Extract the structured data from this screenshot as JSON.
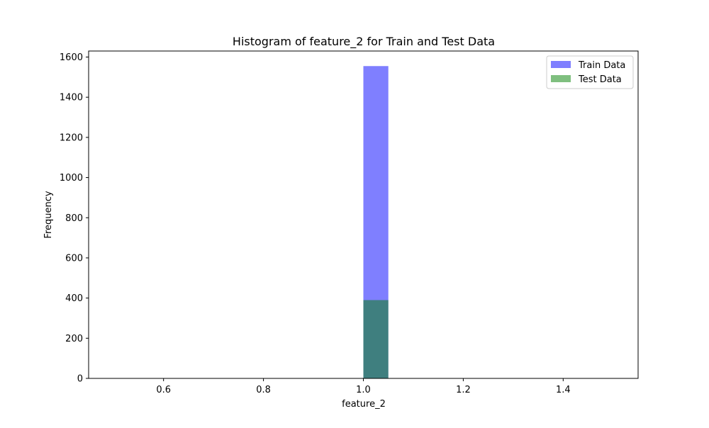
{
  "chart_data": {
    "type": "bar",
    "title": "Histogram of feature_2 for Train and Test Data",
    "xlabel": "feature_2",
    "ylabel": "Frequency",
    "xlim": [
      0.45,
      1.55
    ],
    "ylim": [
      0,
      1630
    ],
    "xticks": [
      0.6,
      0.8,
      1.0,
      1.2,
      1.4
    ],
    "xtick_labels": [
      "0.6",
      "0.8",
      "1.0",
      "1.2",
      "1.4"
    ],
    "yticks": [
      0,
      200,
      400,
      600,
      800,
      1000,
      1200,
      1400,
      1600
    ],
    "ytick_labels": [
      "0",
      "200",
      "400",
      "600",
      "800",
      "1000",
      "1200",
      "1400",
      "1600"
    ],
    "grid": false,
    "legend_position": "top-right",
    "series": [
      {
        "name": "Train Data",
        "color": "#0000ff",
        "alpha": 0.5,
        "bins": [
          {
            "x0": 1.0,
            "x1": 1.05,
            "value": 1555
          }
        ]
      },
      {
        "name": "Test Data",
        "color": "#008000",
        "alpha": 0.5,
        "bins": [
          {
            "x0": 1.0,
            "x1": 1.05,
            "value": 390
          }
        ]
      }
    ]
  }
}
